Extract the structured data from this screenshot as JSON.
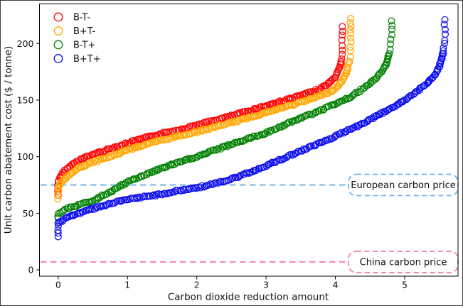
{
  "chart_data": {
    "type": "scatter",
    "title": "",
    "xlabel": "Carbon dioxide reduction amount",
    "ylabel": "Unit carbon abatement cost ($ / tonne)",
    "xlim": [
      -0.27,
      5.77
    ],
    "ylim": [
      -5.6,
      235
    ],
    "xticks": [
      0,
      1,
      2,
      3,
      4,
      5
    ],
    "yticks": [
      0,
      50,
      100,
      150,
      200
    ],
    "grid": false,
    "legend_position": "upper left",
    "marker": "open-circle",
    "series": [
      {
        "name": "B-T-",
        "color": "#ff0000",
        "points": [
          [
            0,
            66
          ],
          [
            0,
            69
          ],
          [
            0,
            72
          ],
          [
            0,
            75
          ],
          [
            0,
            78
          ],
          [
            0.04,
            83
          ],
          [
            0.1,
            88
          ],
          [
            0.2,
            93
          ],
          [
            0.3,
            97
          ],
          [
            0.5,
            102
          ],
          [
            0.75,
            107
          ],
          [
            1,
            112
          ],
          [
            1.25,
            116.5
          ],
          [
            1.5,
            120.5
          ],
          [
            1.75,
            124
          ],
          [
            2,
            128
          ],
          [
            2.25,
            132
          ],
          [
            2.5,
            136
          ],
          [
            2.75,
            140.5
          ],
          [
            3,
            145
          ],
          [
            3.25,
            149.5
          ],
          [
            3.5,
            154
          ],
          [
            3.7,
            158
          ],
          [
            3.85,
            162.5
          ],
          [
            3.95,
            167
          ],
          [
            4.02,
            172
          ],
          [
            4.06,
            178
          ],
          [
            4.09,
            186
          ],
          [
            4.1,
            194
          ],
          [
            4.1,
            203
          ],
          [
            4.1,
            215
          ]
        ]
      },
      {
        "name": "B+T-",
        "color": "#ffa500",
        "points": [
          [
            0,
            63
          ],
          [
            0,
            66
          ],
          [
            0,
            69
          ],
          [
            0,
            72
          ],
          [
            0.04,
            77
          ],
          [
            0.1,
            81
          ],
          [
            0.2,
            86
          ],
          [
            0.3,
            90
          ],
          [
            0.5,
            95
          ],
          [
            0.75,
            100
          ],
          [
            1,
            106
          ],
          [
            1.25,
            110.5
          ],
          [
            1.5,
            114.5
          ],
          [
            1.75,
            118.5
          ],
          [
            2,
            122
          ],
          [
            2.25,
            126
          ],
          [
            2.5,
            130
          ],
          [
            2.75,
            134.5
          ],
          [
            3,
            139
          ],
          [
            3.25,
            143.5
          ],
          [
            3.5,
            148
          ],
          [
            3.75,
            153
          ],
          [
            3.95,
            158
          ],
          [
            4.05,
            163
          ],
          [
            4.12,
            169
          ],
          [
            4.17,
            176
          ],
          [
            4.2,
            184
          ],
          [
            4.22,
            193
          ],
          [
            4.22,
            202
          ],
          [
            4.22,
            212
          ],
          [
            4.22,
            222
          ]
        ]
      },
      {
        "name": "B-T+",
        "color": "#008000",
        "points": [
          [
            0,
            45
          ],
          [
            0,
            47.5
          ],
          [
            0,
            50
          ],
          [
            0.05,
            52
          ],
          [
            0.1,
            53.5
          ],
          [
            0.25,
            56.5
          ],
          [
            0.5,
            61
          ],
          [
            0.75,
            69
          ],
          [
            1,
            77.5
          ],
          [
            1.25,
            84
          ],
          [
            1.5,
            90
          ],
          [
            1.75,
            95
          ],
          [
            2,
            100
          ],
          [
            2.25,
            105.5
          ],
          [
            2.5,
            111
          ],
          [
            2.75,
            116
          ],
          [
            3,
            121
          ],
          [
            3.25,
            127.5
          ],
          [
            3.5,
            134
          ],
          [
            3.75,
            140
          ],
          [
            4,
            146.5
          ],
          [
            4.2,
            152
          ],
          [
            4.35,
            158
          ],
          [
            4.5,
            164.5
          ],
          [
            4.6,
            170
          ],
          [
            4.68,
            176
          ],
          [
            4.74,
            183
          ],
          [
            4.78,
            191
          ],
          [
            4.8,
            199
          ],
          [
            4.81,
            208
          ],
          [
            4.81,
            220
          ]
        ]
      },
      {
        "name": "B+T+",
        "color": "#0b0bee",
        "points": [
          [
            0,
            29
          ],
          [
            0,
            32
          ],
          [
            0,
            35
          ],
          [
            0,
            38
          ],
          [
            0,
            41
          ],
          [
            0.05,
            43.5
          ],
          [
            0.1,
            45.5
          ],
          [
            0.25,
            49
          ],
          [
            0.5,
            54
          ],
          [
            0.75,
            58.5
          ],
          [
            1,
            62
          ],
          [
            1.25,
            64.5
          ],
          [
            1.5,
            67
          ],
          [
            1.75,
            70
          ],
          [
            2,
            72.5
          ],
          [
            2.25,
            76
          ],
          [
            2.5,
            80
          ],
          [
            2.75,
            86
          ],
          [
            3,
            92
          ],
          [
            3.25,
            98.5
          ],
          [
            3.5,
            105
          ],
          [
            3.75,
            111.5
          ],
          [
            4,
            118
          ],
          [
            4.25,
            125
          ],
          [
            4.5,
            132.5
          ],
          [
            4.75,
            141
          ],
          [
            5,
            150
          ],
          [
            5.17,
            157
          ],
          [
            5.32,
            164.5
          ],
          [
            5.45,
            173
          ],
          [
            5.52,
            183
          ],
          [
            5.56,
            193
          ],
          [
            5.58,
            203
          ],
          [
            5.58,
            212
          ],
          [
            5.58,
            221
          ]
        ]
      }
    ],
    "reference_lines": [
      {
        "label": "European carbon price",
        "value": 75,
        "color": "#74b4e8"
      },
      {
        "label": "China carbon price",
        "value": 7,
        "color": "#f3879f"
      }
    ]
  }
}
